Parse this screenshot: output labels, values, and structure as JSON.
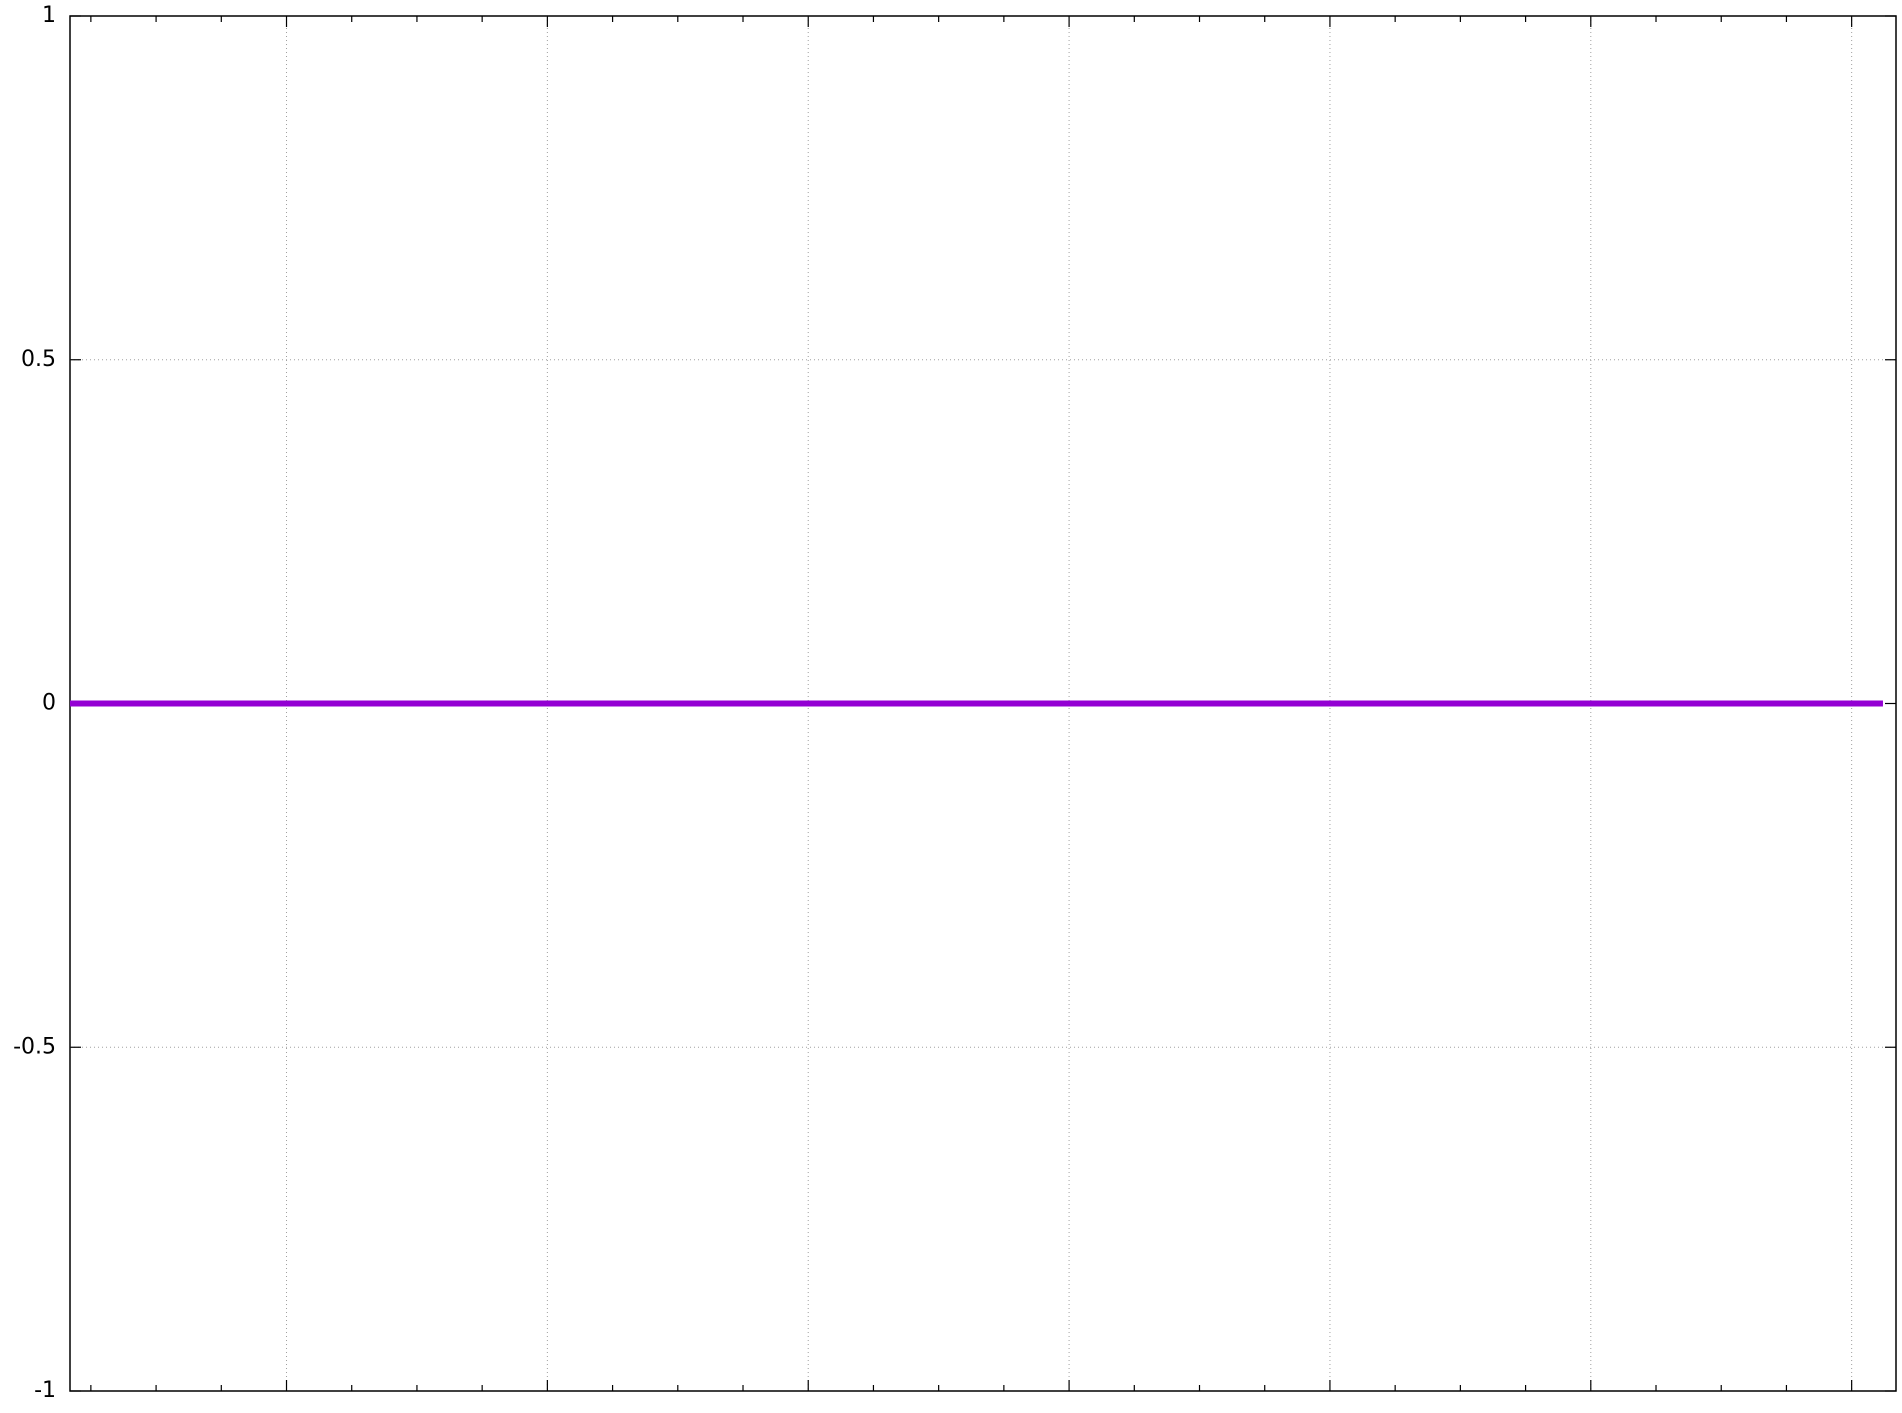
{
  "chart_data": {
    "type": "line",
    "x": [
      0,
      6.95
    ],
    "series": [
      {
        "color": "#9400d3",
        "values": [
          0,
          0
        ]
      }
    ],
    "xlim": [
      0,
      7
    ],
    "xticks": [
      0.83,
      1.83,
      2.83,
      3.83,
      4.83,
      5.83,
      6.83
    ],
    "minor_ticks": 4,
    "ylim": [
      -1,
      1
    ],
    "yticks": [
      -1,
      -0.5,
      0,
      0.5,
      1
    ],
    "grid": true
  }
}
